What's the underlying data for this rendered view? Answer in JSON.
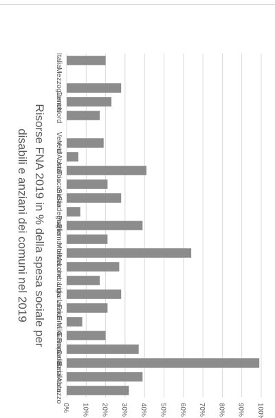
{
  "chart_data": {
    "type": "bar",
    "orientation": "horizontal",
    "rotation": "chart rotated 90° clockwise",
    "title": "Risorse FNA 2019 in % della spesa sociale per disabili e anziani dei comuni nel 2019",
    "xlabel": "",
    "ylabel": "",
    "xlim": [
      0,
      100
    ],
    "tick_values": [
      0,
      10,
      20,
      30,
      40,
      50,
      60,
      70,
      80,
      90,
      100
    ],
    "tick_labels": [
      "0%",
      "10%",
      "20%",
      "30%",
      "40%",
      "50%",
      "60%",
      "70%",
      "80%",
      "90%",
      "100%"
    ],
    "grid": true,
    "bar_color": "#8c8c8c",
    "grid_color": "#d9d9d9",
    "categories": [
      "Abruzzo",
      "Basilicata",
      "Calabria",
      "Campania",
      "Emilia-Rom.",
      "Friuli-V. G.",
      "Lazio",
      "Liguria",
      "Lombardia",
      "Marche",
      "Molise",
      "Piemonte",
      "Puglia",
      "Sardegna",
      "Sicilia",
      "Toscana",
      "Umbria",
      "V. d'Aosta",
      "Veneto",
      "",
      "Nord",
      "Centro",
      "Mezzogiorno",
      "",
      "Italia"
    ],
    "values": [
      32,
      39,
      99,
      37,
      20,
      8,
      21,
      28,
      17,
      27,
      64,
      21,
      39,
      7,
      28,
      21,
      41,
      6,
      19,
      null,
      17,
      23,
      28,
      null,
      20
    ]
  }
}
